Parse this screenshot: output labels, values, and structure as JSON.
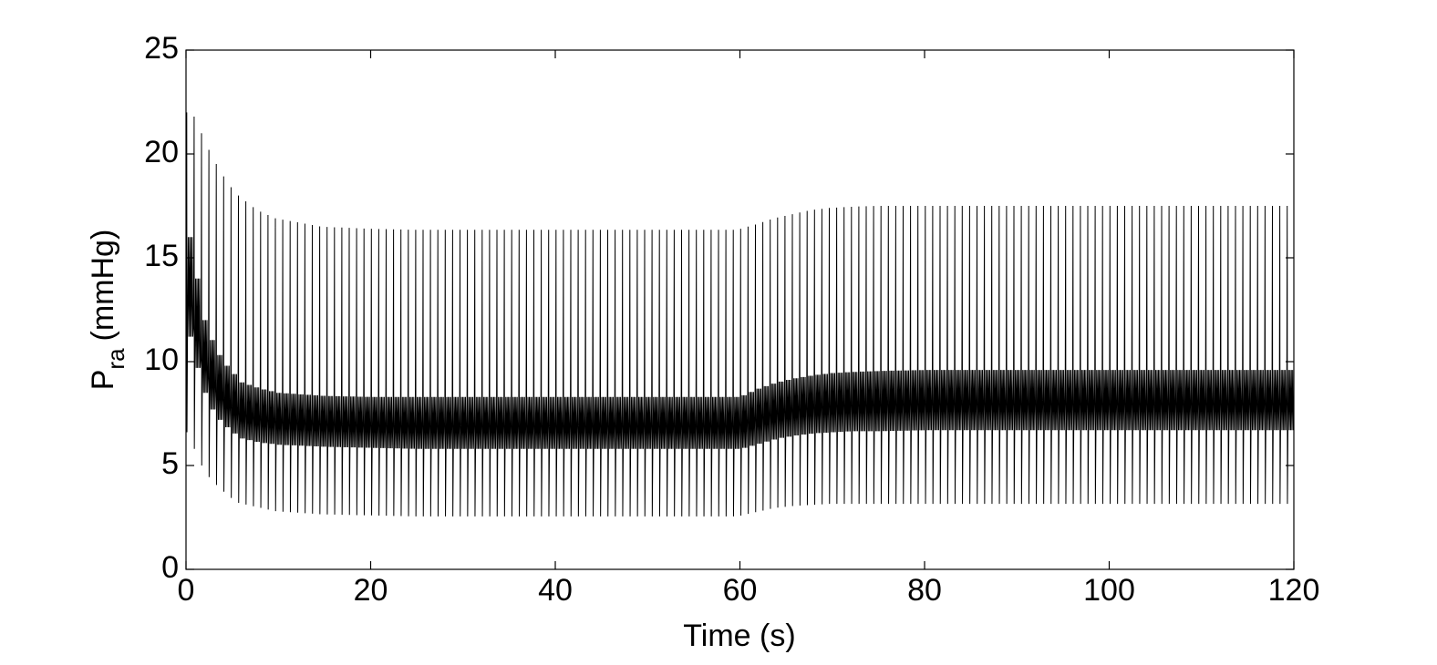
{
  "chart_data": {
    "type": "line",
    "xlabel": "Time (s)",
    "ylabel": {
      "main": "P",
      "subscript": "ra",
      "unit": "(mmHg)"
    },
    "xlim": [
      0,
      120
    ],
    "ylim": [
      0,
      25
    ],
    "xticks": [
      "0",
      "20",
      "40",
      "60",
      "80",
      "100",
      "120"
    ],
    "yticks": [
      "0",
      "5",
      "10",
      "15",
      "20",
      "25"
    ],
    "grid": false,
    "legend": "none",
    "line_color": "#000000",
    "series": [
      {
        "cycle_period_s": 0.8,
        "envelope_points_t": [
          0,
          1,
          2,
          3,
          4,
          5,
          6,
          8,
          10,
          15,
          20,
          25,
          30,
          40,
          50,
          58,
          60,
          62,
          64,
          66,
          68,
          70,
          72,
          75,
          80,
          90,
          100,
          110,
          120
        ],
        "peak_max": [
          22.0,
          22.0,
          21.0,
          20.0,
          19.2,
          18.5,
          18.0,
          17.3,
          16.9,
          16.5,
          16.4,
          16.35,
          16.35,
          16.35,
          16.35,
          16.35,
          16.35,
          16.6,
          16.9,
          17.1,
          17.3,
          17.4,
          17.45,
          17.5,
          17.5,
          17.5,
          17.5,
          17.5,
          17.5
        ],
        "trough_min": [
          7.0,
          6.0,
          5.0,
          4.3,
          3.9,
          3.5,
          3.2,
          3.0,
          2.8,
          2.65,
          2.6,
          2.55,
          2.55,
          2.55,
          2.55,
          2.55,
          2.55,
          2.75,
          2.95,
          3.05,
          3.1,
          3.15,
          3.15,
          3.15,
          3.15,
          3.15,
          3.15,
          3.15,
          3.15
        ],
        "band_upper": [
          17.0,
          14.5,
          12.0,
          10.8,
          10.0,
          9.5,
          9.0,
          8.7,
          8.5,
          8.35,
          8.3,
          8.3,
          8.3,
          8.3,
          8.3,
          8.3,
          8.3,
          8.7,
          9.0,
          9.2,
          9.35,
          9.45,
          9.5,
          9.55,
          9.6,
          9.6,
          9.6,
          9.6,
          9.6
        ],
        "band_lower": [
          12.0,
          10.0,
          8.5,
          7.5,
          7.0,
          6.6,
          6.3,
          6.1,
          6.0,
          5.9,
          5.85,
          5.8,
          5.8,
          5.8,
          5.8,
          5.8,
          5.8,
          6.05,
          6.3,
          6.45,
          6.55,
          6.6,
          6.65,
          6.65,
          6.7,
          6.7,
          6.7,
          6.7,
          6.7
        ]
      }
    ]
  }
}
